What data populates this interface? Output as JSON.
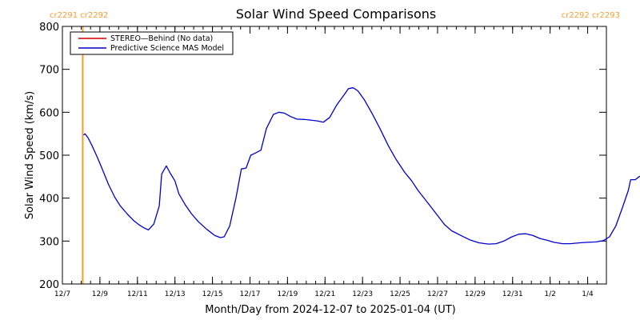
{
  "chart_data": {
    "type": "line",
    "title": "Solar Wind Speed Comparisons",
    "xlabel": "Month/Day from 2024-12-07 to 2025-01-04 (UT)",
    "ylabel": "Solar Wind Speed (km/s)",
    "x_range": [
      "2024-12-07",
      "2025-01-05"
    ],
    "ylim": [
      200,
      800
    ],
    "y_ticks": [
      200,
      300,
      400,
      500,
      600,
      700,
      800
    ],
    "x_ticks": [
      {
        "date": "2024-12-07",
        "label": "12/7"
      },
      {
        "date": "2024-12-09",
        "label": "12/9"
      },
      {
        "date": "2024-12-11",
        "label": "12/11"
      },
      {
        "date": "2024-12-13",
        "label": "12/13"
      },
      {
        "date": "2024-12-15",
        "label": "12/15"
      },
      {
        "date": "2024-12-17",
        "label": "12/17"
      },
      {
        "date": "2024-12-19",
        "label": "12/19"
      },
      {
        "date": "2024-12-21",
        "label": "12/21"
      },
      {
        "date": "2024-12-23",
        "label": "12/23"
      },
      {
        "date": "2024-12-25",
        "label": "12/25"
      },
      {
        "date": "2024-12-27",
        "label": "12/27"
      },
      {
        "date": "2024-12-29",
        "label": "12/29"
      },
      {
        "date": "2024-12-31",
        "label": "12/31"
      },
      {
        "date": "2025-01-02",
        "label": "1/2"
      },
      {
        "date": "2025-01-04",
        "label": "1/4"
      }
    ],
    "legend_placement": "top-left",
    "grid": false,
    "series": [
      {
        "name": "STEREO—Behind (No data)",
        "color": "#cc0000",
        "points": []
      },
      {
        "name": "Predictive Science MAS Model",
        "color": "#0000cc",
        "points": [
          [
            "2024-12-08T03:00",
            547
          ],
          [
            "2024-12-08T05:00",
            550
          ],
          [
            "2024-12-08T09:00",
            540
          ],
          [
            "2024-12-08T14:00",
            522
          ],
          [
            "2024-12-08T20:00",
            498
          ],
          [
            "2024-12-09T03:00",
            468
          ],
          [
            "2024-12-09T11:00",
            432
          ],
          [
            "2024-12-09T19:00",
            402
          ],
          [
            "2024-12-10T02:00",
            382
          ],
          [
            "2024-12-10T11:00",
            363
          ],
          [
            "2024-12-10T19:00",
            348
          ],
          [
            "2024-12-11T02:00",
            338
          ],
          [
            "2024-12-11T09:00",
            330
          ],
          [
            "2024-12-11T14:00",
            326
          ],
          [
            "2024-12-11T21:00",
            340
          ],
          [
            "2024-12-12T04:00",
            382
          ],
          [
            "2024-12-12T07:00",
            456
          ],
          [
            "2024-12-12T13:00",
            475
          ],
          [
            "2024-12-12T18:00",
            458
          ],
          [
            "2024-12-13T00:00",
            440
          ],
          [
            "2024-12-13T05:00",
            410
          ],
          [
            "2024-12-13T13:00",
            385
          ],
          [
            "2024-12-13T21:00",
            364
          ],
          [
            "2024-12-14T06:00",
            345
          ],
          [
            "2024-12-14T17:00",
            327
          ],
          [
            "2024-12-15T03:00",
            313
          ],
          [
            "2024-12-15T10:00",
            308
          ],
          [
            "2024-12-15T15:00",
            310
          ],
          [
            "2024-12-15T22:00",
            335
          ],
          [
            "2024-12-16T06:00",
            400
          ],
          [
            "2024-12-16T13:00",
            468
          ],
          [
            "2024-12-16T19:00",
            470
          ],
          [
            "2024-12-17T01:00",
            500
          ],
          [
            "2024-12-17T07:00",
            505
          ],
          [
            "2024-12-17T14:00",
            512
          ],
          [
            "2024-12-17T21:00",
            562
          ],
          [
            "2024-12-18T06:00",
            595
          ],
          [
            "2024-12-18T13:00",
            600
          ],
          [
            "2024-12-18T20:00",
            598
          ],
          [
            "2024-12-19T04:00",
            590
          ],
          [
            "2024-12-19T12:00",
            584
          ],
          [
            "2024-12-20T00:00",
            583
          ],
          [
            "2024-12-20T14:00",
            580
          ],
          [
            "2024-12-20T22:00",
            577
          ],
          [
            "2024-12-21T06:00",
            588
          ],
          [
            "2024-12-21T15:00",
            617
          ],
          [
            "2024-12-22T01:00",
            642
          ],
          [
            "2024-12-22T06:00",
            655
          ],
          [
            "2024-12-22T12:00",
            657
          ],
          [
            "2024-12-22T18:00",
            650
          ],
          [
            "2024-12-23T02:00",
            630
          ],
          [
            "2024-12-23T12:00",
            598
          ],
          [
            "2024-12-23T22:00",
            563
          ],
          [
            "2024-12-24T09:00",
            522
          ],
          [
            "2024-12-24T19:00",
            490
          ],
          [
            "2024-12-25T06:00",
            460
          ],
          [
            "2024-12-25T15:00",
            440
          ],
          [
            "2024-12-25T23:00",
            418
          ],
          [
            "2024-12-26T11:00",
            390
          ],
          [
            "2024-12-26T23:00",
            362
          ],
          [
            "2024-12-27T09:00",
            338
          ],
          [
            "2024-12-27T18:00",
            324
          ],
          [
            "2024-12-28T06:00",
            313
          ],
          [
            "2024-12-28T17:00",
            303
          ],
          [
            "2024-12-29T05:00",
            296
          ],
          [
            "2024-12-29T17:00",
            293
          ],
          [
            "2024-12-30T03:00",
            294
          ],
          [
            "2024-12-30T13:00",
            300
          ],
          [
            "2024-12-30T22:00",
            309
          ],
          [
            "2024-12-31T08:00",
            316
          ],
          [
            "2024-12-31T17:00",
            317
          ],
          [
            "2025-01-01T02:00",
            313
          ],
          [
            "2025-01-01T11:00",
            306
          ],
          [
            "2025-01-01T20:00",
            302
          ],
          [
            "2025-01-02T05:00",
            297
          ],
          [
            "2025-01-02T16:00",
            294
          ],
          [
            "2025-01-03T02:00",
            294
          ],
          [
            "2025-01-03T14:00",
            296
          ],
          [
            "2025-01-04T00:00",
            297
          ],
          [
            "2025-01-04T11:00",
            298
          ],
          [
            "2025-01-04T20:00",
            301
          ],
          [
            "2025-01-05T04:00",
            310
          ],
          [
            "2025-01-05T12:00",
            335
          ],
          [
            "2025-01-05T20:00",
            375
          ],
          [
            "2025-01-06T04:00",
            418
          ],
          [
            "2025-01-06T07:00",
            443
          ],
          [
            "2025-01-06T13:00",
            443
          ],
          [
            "2025-01-06T18:00",
            450
          ],
          [
            "2025-01-06T21:00",
            452
          ]
        ]
      }
    ],
    "carrington_markers": [
      {
        "date": "2024-12-08T02:00",
        "label": "cr2291 cr2292",
        "color": "#f0a030",
        "align": "left"
      },
      {
        "date": "2025-01-06T20:00",
        "label": "cr2292 cr2293",
        "color": "#f0a030",
        "align": "right"
      }
    ]
  }
}
